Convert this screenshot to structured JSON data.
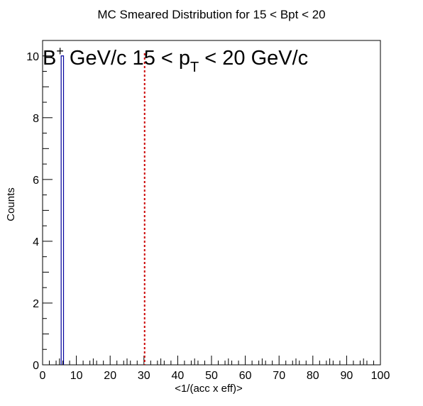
{
  "chart_data": {
    "type": "bar",
    "title": "MC Smeared Distribution for 15 < Bpt < 20",
    "xlabel": "<1/(acc x eff)>",
    "ylabel": "Counts",
    "xlim": [
      0,
      100
    ],
    "ylim": [
      0,
      10.5
    ],
    "x_ticks": [
      0,
      10,
      20,
      30,
      40,
      50,
      60,
      70,
      80,
      90,
      100
    ],
    "y_ticks": [
      0,
      2,
      4,
      6,
      8,
      10
    ],
    "bins": [
      {
        "x_low": 5.5,
        "x_high": 6.2,
        "count": 10
      }
    ],
    "vertical_line": {
      "x": 30.2,
      "color": "#cc0000",
      "style": "dashed"
    },
    "annotation": {
      "prefix": "B",
      "prefix_sup": "+",
      "middle": " GeV/c 15 < p",
      "sub": "T",
      "suffix": " < 20 GeV/c"
    },
    "colors": {
      "histogram": "#00009c",
      "line": "#cc0000"
    }
  }
}
